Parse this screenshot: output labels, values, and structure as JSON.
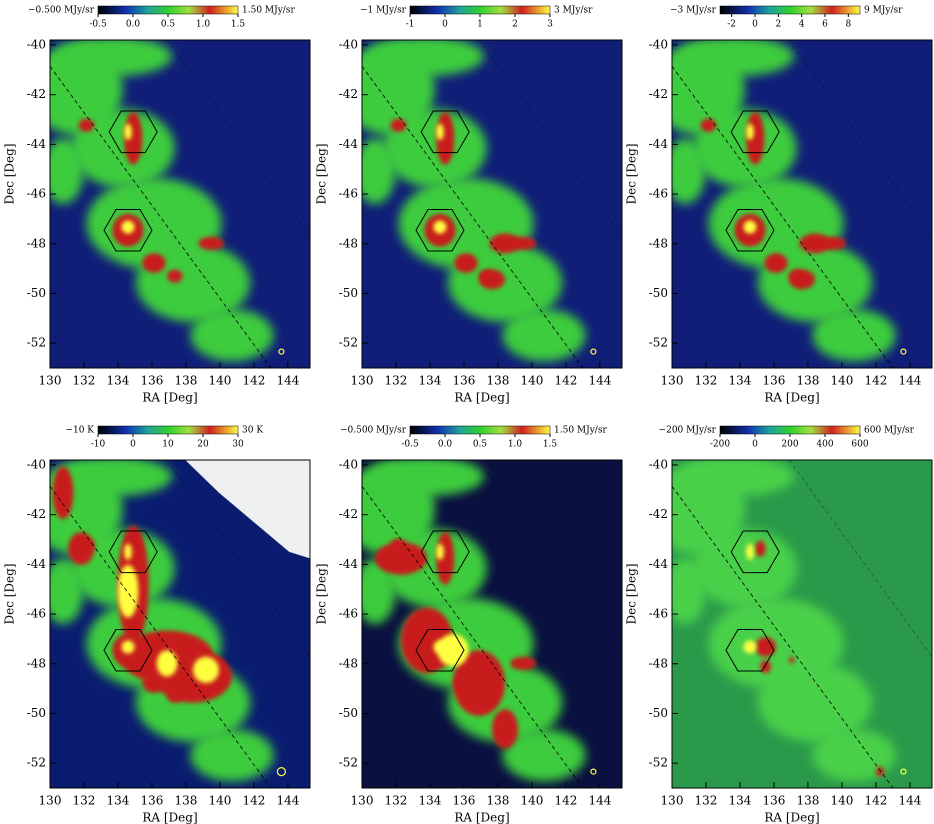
{
  "chart_data": [
    {
      "type": "image",
      "xlabel": "RA [Deg]",
      "ylabel": "Dec [Deg]",
      "xlim": [
        130,
        145.3
      ],
      "ylim": [
        -53,
        -39.8
      ],
      "xticks": [
        130,
        132,
        134,
        136,
        138,
        140,
        142,
        144
      ],
      "yticks": [
        -40,
        -42,
        -44,
        -46,
        -48,
        -50,
        -52
      ],
      "colorbar": {
        "min_label": "−0.500 MJy/sr",
        "max_label": "1.50 MJy/sr",
        "lim": [
          -0.5,
          1.5
        ],
        "ticks": [
          -0.5,
          {
            "value": 0,
            "label": "0.0"
          },
          0.5,
          {
            "value": 1,
            "label": "1.0"
          },
          1.5
        ]
      }
    },
    {
      "type": "image",
      "xlabel": "RA [Deg]",
      "ylabel": "Dec [Deg]",
      "xlim": [
        130,
        145.3
      ],
      "ylim": [
        -53,
        -39.8
      ],
      "xticks": [
        130,
        132,
        134,
        136,
        138,
        140,
        142,
        144
      ],
      "yticks": [
        -40,
        -42,
        -44,
        -46,
        -48,
        -50,
        -52
      ],
      "colorbar": {
        "min_label": "−1 MJy/sr",
        "max_label": "3 MJy/sr",
        "lim": [
          -1,
          3
        ],
        "ticks": [
          -1,
          0,
          1,
          2,
          3
        ]
      }
    },
    {
      "type": "image",
      "xlabel": "RA [Deg]",
      "ylabel": "Dec [Deg]",
      "xlim": [
        130,
        145.3
      ],
      "ylim": [
        -53,
        -39.8
      ],
      "xticks": [
        130,
        132,
        134,
        136,
        138,
        140,
        142,
        144
      ],
      "yticks": [
        -40,
        -42,
        -44,
        -46,
        -48,
        -50,
        -52
      ],
      "colorbar": {
        "min_label": "−3 MJy/sr",
        "max_label": "9 MJy/sr",
        "lim": [
          -3,
          9
        ],
        "ticks": [
          -2,
          0,
          2,
          4,
          6,
          8
        ]
      }
    },
    {
      "type": "image",
      "xlabel": "RA [Deg]",
      "ylabel": "Dec [Deg]",
      "xlim": [
        130,
        145.3
      ],
      "ylim": [
        -53,
        -39.8
      ],
      "xticks": [
        130,
        132,
        134,
        136,
        138,
        140,
        142,
        144
      ],
      "yticks": [
        -40,
        -42,
        -44,
        -46,
        -48,
        -50,
        -52
      ],
      "colorbar": {
        "min_label": "−10 K",
        "max_label": "30 K",
        "lim": [
          -10,
          30
        ],
        "ticks": [
          -10,
          0,
          10,
          20,
          30
        ]
      }
    },
    {
      "type": "image",
      "xlabel": "RA [Deg]",
      "ylabel": "Dec [Deg]",
      "xlim": [
        130,
        145.3
      ],
      "ylim": [
        -53,
        -39.8
      ],
      "xticks": [
        130,
        132,
        134,
        136,
        138,
        140,
        142,
        144
      ],
      "yticks": [
        -40,
        -42,
        -44,
        -46,
        -48,
        -50,
        -52
      ],
      "colorbar": {
        "min_label": "−0.500 MJy/sr",
        "max_label": "1.50 MJy/sr",
        "lim": [
          -0.5,
          1.5
        ],
        "ticks": [
          -0.5,
          {
            "value": 0,
            "label": "0.0"
          },
          0.5,
          {
            "value": 1,
            "label": "1.0"
          },
          1.5
        ]
      }
    },
    {
      "type": "image",
      "xlabel": "RA [Deg]",
      "ylabel": "Dec [Deg]",
      "xlim": [
        130,
        145.3
      ],
      "ylim": [
        -53,
        -39.8
      ],
      "xticks": [
        130,
        132,
        134,
        136,
        138,
        140,
        142,
        144
      ],
      "yticks": [
        -40,
        -42,
        -44,
        -46,
        -48,
        -50,
        -52
      ],
      "colorbar": {
        "min_label": "−200 MJy/sr",
        "max_label": "600 MJy/sr",
        "lim": [
          -200,
          600
        ],
        "ticks": [
          -200,
          0,
          200,
          400,
          600
        ]
      }
    }
  ]
}
